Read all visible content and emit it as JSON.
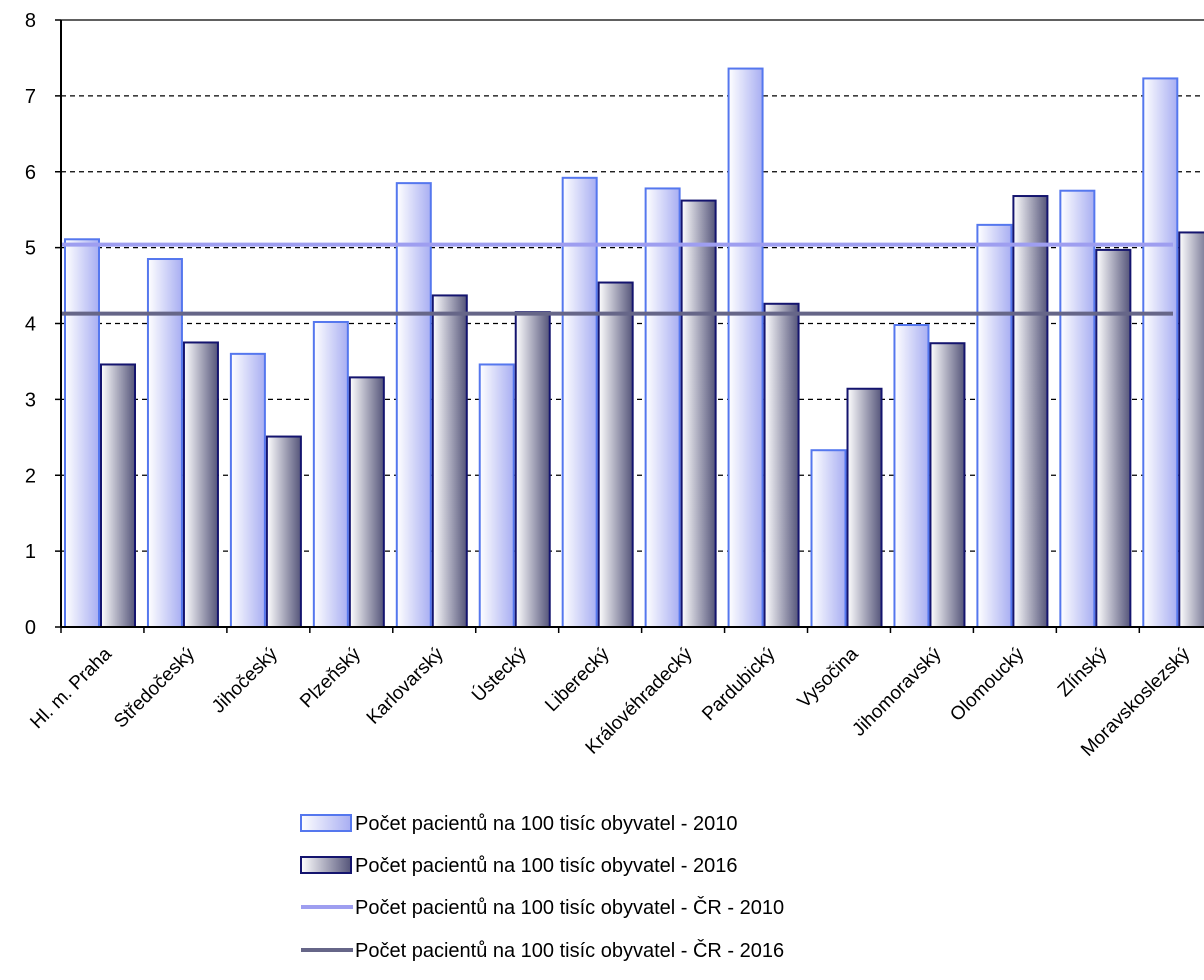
{
  "chart_data": {
    "type": "bar",
    "title": "",
    "xlabel": "",
    "ylabel": "",
    "ylim": [
      0,
      8
    ],
    "yticks": [
      0,
      1,
      2,
      3,
      4,
      5,
      6,
      7,
      8
    ],
    "grid": "horizontal dashed",
    "legend_position": "bottom",
    "categories": [
      "Hl. m. Praha",
      "Středočeský",
      "Jihočeský",
      "Plzeňský",
      "Karlovarský",
      "Ústecký",
      "Liberecký",
      "Královéhradecký",
      "Pardubický",
      "Vysočina",
      "Jihomoravský",
      "Olomoucký",
      "Zlínský",
      "Moravskoslezský"
    ],
    "series": [
      {
        "name": "Počet pacientů na 100 tisíc obyvatel - 2010",
        "kind": "bar",
        "color": "#5577ee",
        "fill": "#c8ccf6",
        "values": [
          5.11,
          4.85,
          3.6,
          4.02,
          5.85,
          3.46,
          5.92,
          5.78,
          7.36,
          2.33,
          3.98,
          5.3,
          5.75,
          7.23
        ]
      },
      {
        "name": "Počet pacientů na 100 tisíc obyvatel - 2016",
        "kind": "bar",
        "color": "#14146e",
        "fill": "#8a8aa6",
        "values": [
          3.46,
          3.75,
          2.51,
          3.29,
          4.37,
          4.15,
          4.54,
          5.62,
          4.26,
          3.14,
          3.74,
          5.68,
          4.97,
          5.2
        ]
      },
      {
        "name": "Počet pacientů na 100 tisíc obyvatel - ČR - 2010",
        "kind": "line",
        "color": "#9e9ef0",
        "value": 5.04
      },
      {
        "name": "Počet pacientů na 100 tisíc obyvatel - ČR - 2016",
        "kind": "line",
        "color": "#666688",
        "value": 4.13
      }
    ]
  }
}
